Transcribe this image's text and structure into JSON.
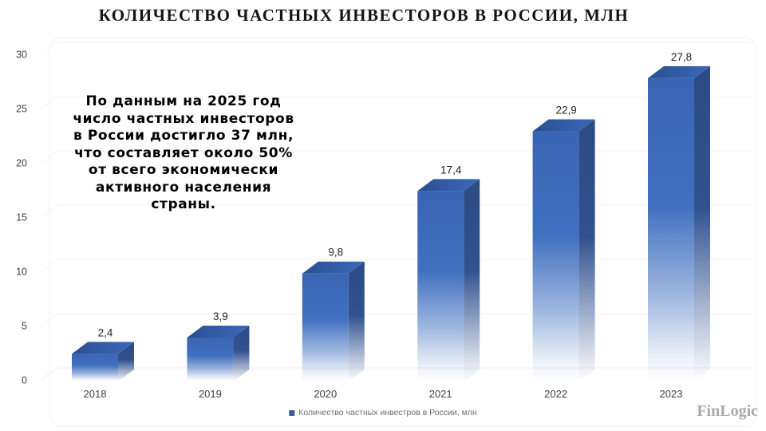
{
  "title": "КОЛИЧЕСТВО ЧАСТНЫХ ИНВЕСТОРОВ В РОССИИ, МЛН",
  "annotation": "По данным на 2025 год\nчисло частных инвесторов\nв России достигло 37 млн,\nчто составляет около 50%\nот всего экономически\nактивного населения\nстраны.",
  "watermark": "FinLogic",
  "legend": {
    "label": "Количество частных инвестров в России, млн",
    "marker_color": "#3A5C94"
  },
  "colors": {
    "bar_front_top": "#3A64B4",
    "bar_front_mid": "#4170C0",
    "bar_side_dark": "#2C4B84",
    "bar_side": "#31528F",
    "bar_top_dark": "#2A4D8C",
    "bar_top_mid": "#3158A0",
    "bar_top_light": "#3B68B8",
    "gridline": "#F3F3F3",
    "baseline": "#ECECEC",
    "axis_text": "#3F3F3F"
  },
  "chart_data": {
    "type": "bar",
    "style": "3d-gradient-fade",
    "title": "КОЛИЧЕСТВО ЧАСТНЫХ ИНВЕСТОРОВ В РОССИИ, МЛН",
    "series_name": "Количество частных инвестров в России, млн",
    "categories": [
      "2018",
      "2019",
      "2020",
      "2021",
      "2022",
      "2023"
    ],
    "values": [
      2.4,
      3.9,
      9.8,
      17.4,
      22.9,
      27.8
    ],
    "value_labels": [
      "2,4",
      "3,9",
      "9,8",
      "17,4",
      "22,9",
      "27,8"
    ],
    "xlabel": "",
    "ylabel": "",
    "yticks": [
      0,
      5,
      10,
      15,
      20,
      25,
      30
    ],
    "ylim": [
      0,
      30
    ],
    "grid": true,
    "legend_position": "bottom"
  }
}
